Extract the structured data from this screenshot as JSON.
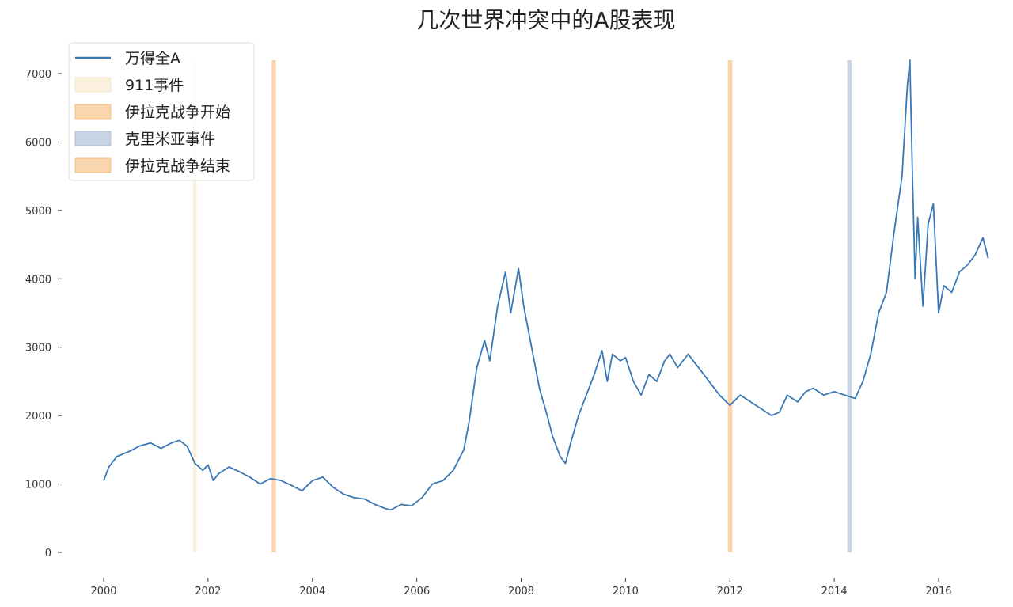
{
  "chart_data": {
    "type": "line",
    "title": "几次世界冲突中的A股表现",
    "xlabel": "",
    "ylabel": "",
    "xlim": [
      2000,
      2017
    ],
    "ylim": [
      0,
      7200
    ],
    "xticks": [
      2000,
      2002,
      2004,
      2006,
      2008,
      2010,
      2012,
      2014,
      2016
    ],
    "yticks": [
      0,
      1000,
      2000,
      3000,
      4000,
      5000,
      6000,
      7000
    ],
    "grid": false,
    "legend_position": "top-left",
    "series": [
      {
        "name": "万得全A",
        "color": "#3a78b5",
        "x": [
          2000.0,
          2000.1,
          2000.25,
          2000.5,
          2000.7,
          2000.9,
          2001.1,
          2001.3,
          2001.45,
          2001.6,
          2001.75,
          2001.9,
          2002.0,
          2002.1,
          2002.2,
          2002.4,
          2002.6,
          2002.8,
          2003.0,
          2003.2,
          2003.4,
          2003.6,
          2003.8,
          2004.0,
          2004.2,
          2004.4,
          2004.6,
          2004.8,
          2005.0,
          2005.2,
          2005.4,
          2005.5,
          2005.7,
          2005.9,
          2006.1,
          2006.3,
          2006.5,
          2006.7,
          2006.9,
          2007.0,
          2007.15,
          2007.3,
          2007.4,
          2007.55,
          2007.7,
          2007.8,
          2007.95,
          2008.05,
          2008.2,
          2008.35,
          2008.5,
          2008.6,
          2008.75,
          2008.85,
          2008.95,
          2009.1,
          2009.25,
          2009.4,
          2009.55,
          2009.65,
          2009.75,
          2009.9,
          2010.0,
          2010.15,
          2010.3,
          2010.45,
          2010.6,
          2010.75,
          2010.85,
          2011.0,
          2011.2,
          2011.4,
          2011.6,
          2011.8,
          2012.0,
          2012.2,
          2012.4,
          2012.6,
          2012.8,
          2012.95,
          2013.1,
          2013.3,
          2013.45,
          2013.6,
          2013.8,
          2014.0,
          2014.2,
          2014.4,
          2014.55,
          2014.7,
          2014.85,
          2015.0,
          2015.15,
          2015.3,
          2015.4,
          2015.45,
          2015.5,
          2015.55,
          2015.6,
          2015.7,
          2015.8,
          2015.9,
          2016.0,
          2016.1,
          2016.25,
          2016.4,
          2016.55,
          2016.7,
          2016.85,
          2016.95
        ],
        "values": [
          1050,
          1250,
          1400,
          1480,
          1560,
          1600,
          1520,
          1600,
          1640,
          1550,
          1300,
          1200,
          1280,
          1050,
          1150,
          1250,
          1180,
          1100,
          1000,
          1080,
          1050,
          980,
          900,
          1050,
          1100,
          950,
          850,
          800,
          780,
          700,
          640,
          620,
          700,
          680,
          800,
          1000,
          1050,
          1200,
          1500,
          1900,
          2700,
          3100,
          2800,
          3600,
          4100,
          3500,
          4150,
          3600,
          3000,
          2400,
          2000,
          1700,
          1400,
          1300,
          1600,
          2000,
          2300,
          2600,
          2950,
          2500,
          2900,
          2800,
          2850,
          2500,
          2300,
          2600,
          2500,
          2800,
          2900,
          2700,
          2900,
          2700,
          2500,
          2300,
          2150,
          2300,
          2200,
          2100,
          2000,
          2050,
          2300,
          2200,
          2350,
          2400,
          2300,
          2350,
          2300,
          2250,
          2500,
          2900,
          3500,
          3800,
          4700,
          5500,
          6800,
          7200,
          5500,
          4000,
          4900,
          3600,
          4800,
          5100,
          3500,
          3900,
          3800,
          4100,
          4200,
          4350,
          4600,
          4300
        ]
      }
    ],
    "shaded_spans": [
      {
        "name": "911事件",
        "x": [
          2001.71,
          2001.78
        ],
        "color": "#f5deb3",
        "opacity": 0.45
      },
      {
        "name": "伊拉克战争开始",
        "x": [
          2003.22,
          2003.3
        ],
        "color": "#f5a34e",
        "opacity": 0.45
      },
      {
        "name": "克里米亚事件",
        "x": [
          2014.25,
          2014.33
        ],
        "color": "#8fa9c8",
        "opacity": 0.5
      },
      {
        "name": "伊拉克战争结束",
        "x": [
          2011.96,
          2012.05
        ],
        "color": "#f5a34e",
        "opacity": 0.45
      }
    ]
  }
}
